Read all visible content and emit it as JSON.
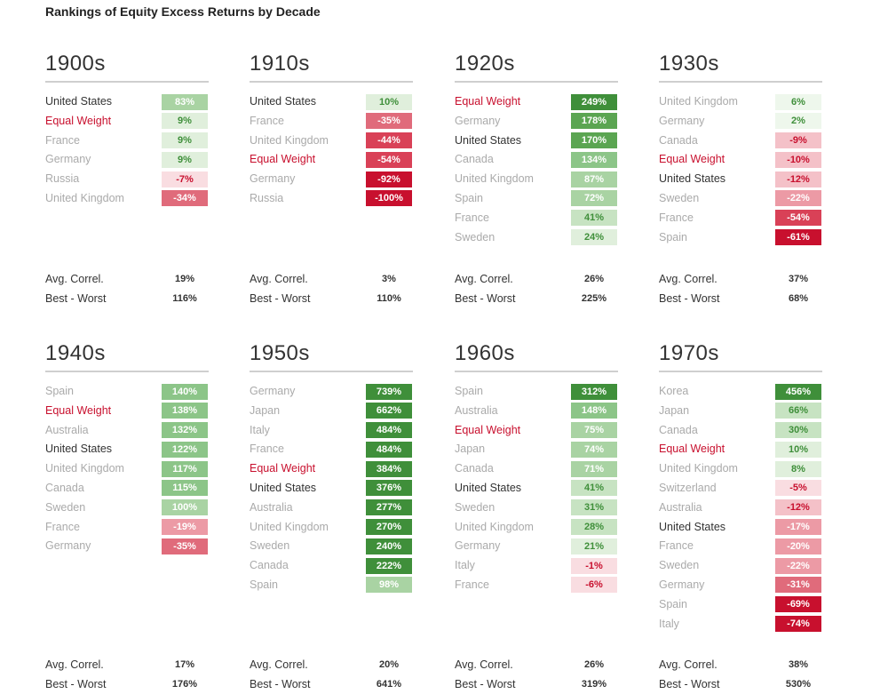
{
  "title": "Rankings of Equity Excess Returns by Decade",
  "colors": {
    "us": "#333333",
    "equal_weight": "#c8102e",
    "other": "#aaaaaa"
  },
  "stat_labels": {
    "avg_correl": "Avg. Correl.",
    "best_worst": "Best - Worst"
  },
  "chart_data": {
    "type": "table",
    "panels": [
      {
        "decade": "1900s",
        "rows": [
          {
            "country": "United States",
            "value": 83,
            "label": "83%"
          },
          {
            "country": "Equal Weight",
            "value": 9,
            "label": "9%"
          },
          {
            "country": "France",
            "value": 9,
            "label": "9%"
          },
          {
            "country": "Germany",
            "value": 9,
            "label": "9%"
          },
          {
            "country": "Russia",
            "value": -7,
            "label": "-7%"
          },
          {
            "country": "United Kingdom",
            "value": -34,
            "label": "-34%"
          }
        ],
        "avg_correl": "19%",
        "best_worst": "116%"
      },
      {
        "decade": "1910s",
        "rows": [
          {
            "country": "United States",
            "value": 10,
            "label": "10%"
          },
          {
            "country": "France",
            "value": -35,
            "label": "-35%"
          },
          {
            "country": "United Kingdom",
            "value": -44,
            "label": "-44%"
          },
          {
            "country": "Equal Weight",
            "value": -54,
            "label": "-54%"
          },
          {
            "country": "Germany",
            "value": -92,
            "label": "-92%"
          },
          {
            "country": "Russia",
            "value": -100,
            "label": "-100%"
          }
        ],
        "avg_correl": "3%",
        "best_worst": "110%"
      },
      {
        "decade": "1920s",
        "rows": [
          {
            "country": "Equal Weight",
            "value": 249,
            "label": "249%"
          },
          {
            "country": "Germany",
            "value": 178,
            "label": "178%"
          },
          {
            "country": "United States",
            "value": 170,
            "label": "170%"
          },
          {
            "country": "Canada",
            "value": 134,
            "label": "134%"
          },
          {
            "country": "United Kingdom",
            "value": 87,
            "label": "87%"
          },
          {
            "country": "Spain",
            "value": 72,
            "label": "72%"
          },
          {
            "country": "France",
            "value": 41,
            "label": "41%"
          },
          {
            "country": "Sweden",
            "value": 24,
            "label": "24%"
          }
        ],
        "avg_correl": "26%",
        "best_worst": "225%"
      },
      {
        "decade": "1930s",
        "rows": [
          {
            "country": "United Kingdom",
            "value": 6,
            "label": "6%"
          },
          {
            "country": "Germany",
            "value": 2,
            "label": "2%"
          },
          {
            "country": "Canada",
            "value": -9,
            "label": "-9%"
          },
          {
            "country": "Equal Weight",
            "value": -10,
            "label": "-10%"
          },
          {
            "country": "United States",
            "value": -12,
            "label": "-12%"
          },
          {
            "country": "Sweden",
            "value": -22,
            "label": "-22%"
          },
          {
            "country": "France",
            "value": -54,
            "label": "-54%"
          },
          {
            "country": "Spain",
            "value": -61,
            "label": "-61%"
          }
        ],
        "avg_correl": "37%",
        "best_worst": "68%"
      },
      {
        "decade": "1940s",
        "rows": [
          {
            "country": "Spain",
            "value": 140,
            "label": "140%"
          },
          {
            "country": "Equal Weight",
            "value": 138,
            "label": "138%"
          },
          {
            "country": "Australia",
            "value": 132,
            "label": "132%"
          },
          {
            "country": "United States",
            "value": 122,
            "label": "122%"
          },
          {
            "country": "United Kingdom",
            "value": 117,
            "label": "117%"
          },
          {
            "country": "Canada",
            "value": 115,
            "label": "115%"
          },
          {
            "country": "Sweden",
            "value": 100,
            "label": "100%"
          },
          {
            "country": "France",
            "value": -19,
            "label": "-19%"
          },
          {
            "country": "Germany",
            "value": -35,
            "label": "-35%"
          }
        ],
        "avg_correl": "17%",
        "best_worst": "176%"
      },
      {
        "decade": "1950s",
        "rows": [
          {
            "country": "Germany",
            "value": 739,
            "label": "739%"
          },
          {
            "country": "Japan",
            "value": 662,
            "label": "662%"
          },
          {
            "country": "Italy",
            "value": 484,
            "label": "484%"
          },
          {
            "country": "France",
            "value": 484,
            "label": "484%"
          },
          {
            "country": "Equal Weight",
            "value": 384,
            "label": "384%"
          },
          {
            "country": "United States",
            "value": 376,
            "label": "376%"
          },
          {
            "country": "Australia",
            "value": 277,
            "label": "277%"
          },
          {
            "country": "United Kingdom",
            "value": 270,
            "label": "270%"
          },
          {
            "country": "Sweden",
            "value": 240,
            "label": "240%"
          },
          {
            "country": "Canada",
            "value": 222,
            "label": "222%"
          },
          {
            "country": "Spain",
            "value": 98,
            "label": "98%"
          }
        ],
        "avg_correl": "20%",
        "best_worst": "641%"
      },
      {
        "decade": "1960s",
        "rows": [
          {
            "country": "Spain",
            "value": 312,
            "label": "312%"
          },
          {
            "country": "Australia",
            "value": 148,
            "label": "148%"
          },
          {
            "country": "Equal Weight",
            "value": 75,
            "label": "75%"
          },
          {
            "country": "Japan",
            "value": 74,
            "label": "74%"
          },
          {
            "country": "Canada",
            "value": 71,
            "label": "71%"
          },
          {
            "country": "United States",
            "value": 41,
            "label": "41%"
          },
          {
            "country": "Sweden",
            "value": 31,
            "label": "31%"
          },
          {
            "country": "United Kingdom",
            "value": 28,
            "label": "28%"
          },
          {
            "country": "Germany",
            "value": 21,
            "label": "21%"
          },
          {
            "country": "Italy",
            "value": -1,
            "label": "-1%"
          },
          {
            "country": "France",
            "value": -6,
            "label": "-6%"
          }
        ],
        "avg_correl": "26%",
        "best_worst": "319%"
      },
      {
        "decade": "1970s",
        "rows": [
          {
            "country": "Korea",
            "value": 456,
            "label": "456%"
          },
          {
            "country": "Japan",
            "value": 66,
            "label": "66%"
          },
          {
            "country": "Canada",
            "value": 30,
            "label": "30%"
          },
          {
            "country": "Equal Weight",
            "value": 10,
            "label": "10%"
          },
          {
            "country": "United Kingdom",
            "value": 8,
            "label": "8%"
          },
          {
            "country": "Switzerland",
            "value": -5,
            "label": "-5%"
          },
          {
            "country": "Australia",
            "value": -12,
            "label": "-12%"
          },
          {
            "country": "United States",
            "value": -17,
            "label": "-17%"
          },
          {
            "country": "France",
            "value": -20,
            "label": "-20%"
          },
          {
            "country": "Sweden",
            "value": -22,
            "label": "-22%"
          },
          {
            "country": "Germany",
            "value": -31,
            "label": "-31%"
          },
          {
            "country": "Spain",
            "value": -69,
            "label": "-69%"
          },
          {
            "country": "Italy",
            "value": -74,
            "label": "-74%"
          }
        ],
        "avg_correl": "38%",
        "best_worst": "530%"
      }
    ]
  }
}
